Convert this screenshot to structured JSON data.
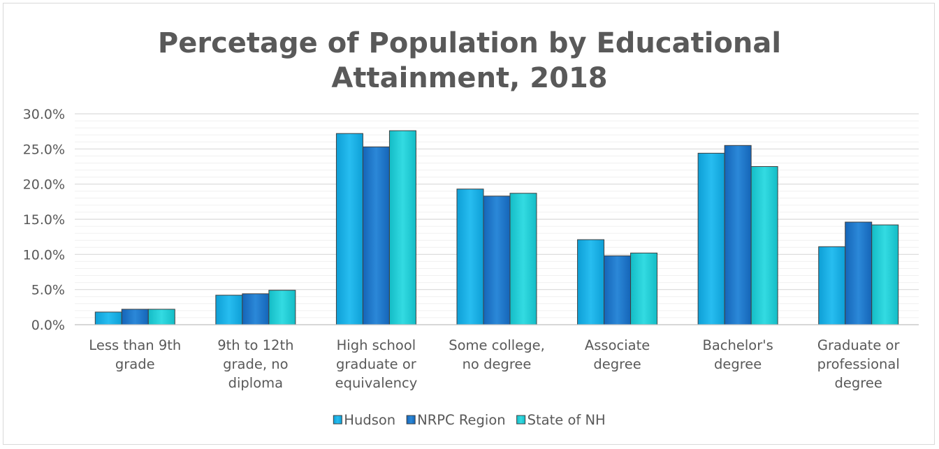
{
  "chart_data": {
    "type": "bar",
    "title": [
      "Percetage of Population by Educational",
      "Attainment, 2018"
    ],
    "categories": [
      [
        "Less than 9th",
        "grade"
      ],
      [
        "9th to 12th",
        "grade, no",
        "diploma"
      ],
      [
        "High school",
        "graduate or",
        "equivalency"
      ],
      [
        "Some college,",
        "no degree"
      ],
      [
        "Associate",
        "degree"
      ],
      [
        "Bachelor's",
        "degree"
      ],
      [
        "Graduate or",
        "professional",
        "degree"
      ]
    ],
    "series": [
      {
        "name": "Hudson",
        "color": "#1bb3e8",
        "values": [
          1.8,
          4.2,
          27.2,
          19.3,
          12.1,
          24.4,
          11.1
        ]
      },
      {
        "name": "NRPC Region",
        "color": "#1c7dd0",
        "values": [
          2.2,
          4.4,
          25.3,
          18.3,
          9.8,
          25.5,
          14.6
        ]
      },
      {
        "name": "State of NH",
        "color": "#1fd0d8",
        "values": [
          2.2,
          4.9,
          27.6,
          18.7,
          10.2,
          22.5,
          14.2
        ]
      }
    ],
    "y_ticks": [
      "0.0%",
      "5.0%",
      "10.0%",
      "15.0%",
      "20.0%",
      "25.0%",
      "30.0%"
    ],
    "ylim": [
      0,
      30
    ],
    "grid": true,
    "legend_position": "bottom"
  }
}
